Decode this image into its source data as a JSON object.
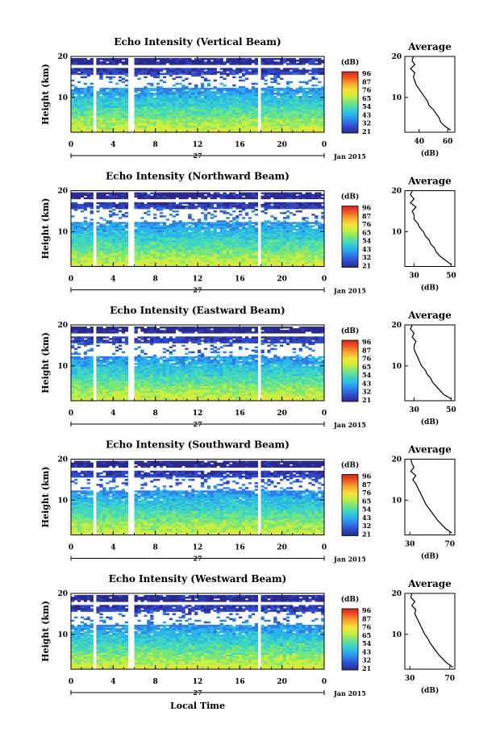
{
  "colors": {
    "colorbar": [
      "#2b2a8c",
      "#2f49c9",
      "#2f7de8",
      "#2ab4ea",
      "#3fd6c2",
      "#7ae67a",
      "#c8ee3f",
      "#f6e23a",
      "#f9a82e",
      "#ef5a23",
      "#d81e1e"
    ],
    "gap": "#ffffff",
    "axis": "#000000"
  },
  "footer": {
    "xlabel": "Local Time",
    "date_label": "Jan 2015",
    "day_label": "27"
  },
  "chart_data": [
    {
      "type": "heatmap",
      "title": "Echo Intensity (Vertical Beam)",
      "xlabel": "",
      "ylabel": "Height (km)",
      "xticks": [
        "0",
        "4",
        "8",
        "12",
        "16",
        "20",
        "0"
      ],
      "yticks": [
        "20",
        "10"
      ],
      "xlim": [
        0,
        24
      ],
      "ylim": [
        1.5,
        20
      ],
      "data_gaps_hours": [
        [
          2.1,
          2.5
        ],
        [
          5.5,
          6.0
        ],
        [
          17.7,
          18.1
        ]
      ],
      "colorbar": {
        "unit": "(dB)",
        "ticks": [
          "96",
          "87",
          "76",
          "65",
          "54",
          "43",
          "32",
          "21"
        ]
      },
      "average": {
        "title": "Average",
        "xlabel": "(dB)",
        "xticks": [
          "40",
          "60"
        ],
        "xlim": [
          30,
          65
        ],
        "height": [
          2,
          3,
          4,
          5,
          6,
          7,
          8,
          9,
          10,
          11,
          12,
          13,
          14,
          15,
          16,
          17,
          18,
          19,
          20
        ],
        "values": [
          62,
          58,
          55,
          54,
          52,
          50,
          47,
          46,
          44,
          42,
          40,
          38,
          37,
          36,
          37,
          34,
          37,
          35,
          36
        ]
      }
    },
    {
      "type": "heatmap",
      "title": "Echo Intensity (Northward Beam)",
      "xlabel": "",
      "ylabel": "Height (km)",
      "xticks": [
        "0",
        "4",
        "8",
        "12",
        "16",
        "20",
        "0"
      ],
      "yticks": [
        "20",
        "10"
      ],
      "xlim": [
        0,
        24
      ],
      "ylim": [
        1.5,
        20
      ],
      "data_gaps_hours": [
        [
          2.1,
          2.5
        ],
        [
          5.5,
          6.0
        ],
        [
          17.7,
          18.1
        ]
      ],
      "colorbar": {
        "unit": "(dB)",
        "ticks": [
          "96",
          "87",
          "76",
          "65",
          "54",
          "43",
          "32",
          "21"
        ]
      },
      "average": {
        "title": "Average",
        "xlabel": "(dB)",
        "xticks": [
          "30",
          "50"
        ],
        "xlim": [
          25,
          52
        ],
        "height": [
          2,
          3,
          4,
          5,
          6,
          7,
          8,
          9,
          10,
          11,
          12,
          13,
          14,
          15,
          16,
          17,
          18,
          19,
          20
        ],
        "values": [
          50,
          47,
          44,
          42,
          41,
          39,
          38,
          36,
          35,
          33,
          32,
          30,
          30,
          29,
          31,
          28,
          30,
          28,
          29
        ]
      }
    },
    {
      "type": "heatmap",
      "title": "Echo Intensity (Eastward Beam)",
      "xlabel": "",
      "ylabel": "Height (km)",
      "xticks": [
        "0",
        "4",
        "8",
        "12",
        "16",
        "20",
        "0"
      ],
      "yticks": [
        "20",
        "10"
      ],
      "xlim": [
        0,
        24
      ],
      "ylim": [
        1.5,
        20
      ],
      "data_gaps_hours": [
        [
          2.1,
          2.5
        ],
        [
          5.5,
          6.0
        ],
        [
          17.7,
          18.1
        ]
      ],
      "colorbar": {
        "unit": "(dB)",
        "ticks": [
          "96",
          "87",
          "76",
          "65",
          "54",
          "43",
          "32",
          "21"
        ]
      },
      "average": {
        "title": "Average",
        "xlabel": "(dB)",
        "xticks": [
          "30",
          "50"
        ],
        "xlim": [
          25,
          52
        ],
        "height": [
          2,
          3,
          4,
          5,
          6,
          7,
          8,
          9,
          10,
          11,
          12,
          13,
          14,
          15,
          16,
          17,
          18,
          19,
          20
        ],
        "values": [
          50,
          46,
          44,
          42,
          40,
          39,
          37,
          36,
          34,
          33,
          32,
          31,
          30,
          30,
          31,
          29,
          30,
          28,
          29
        ]
      }
    },
    {
      "type": "heatmap",
      "title": "Echo Intensity (Southward Beam)",
      "xlabel": "",
      "ylabel": "Height (km)",
      "xticks": [
        "0",
        "4",
        "8",
        "12",
        "16",
        "20",
        "0"
      ],
      "yticks": [
        "20",
        "10"
      ],
      "xlim": [
        0,
        24
      ],
      "ylim": [
        1.5,
        20
      ],
      "data_gaps_hours": [
        [
          2.1,
          2.5
        ],
        [
          5.5,
          6.0
        ],
        [
          17.7,
          18.1
        ]
      ],
      "colorbar": {
        "unit": "(dB)",
        "ticks": [
          "96",
          "87",
          "76",
          "65",
          "54",
          "43",
          "32",
          "21"
        ]
      },
      "average": {
        "title": "Average",
        "xlabel": "(dB)",
        "xticks": [
          "30",
          "70"
        ],
        "xlim": [
          25,
          75
        ],
        "height": [
          2,
          3,
          4,
          5,
          6,
          7,
          8,
          9,
          10,
          11,
          12,
          13,
          14,
          15,
          16,
          17,
          18,
          19,
          20
        ],
        "values": [
          72,
          66,
          62,
          58,
          55,
          52,
          49,
          46,
          44,
          42,
          40,
          38,
          36,
          33,
          36,
          31,
          34,
          32,
          31
        ]
      }
    },
    {
      "type": "heatmap",
      "title": "Echo Intensity (Westward Beam)",
      "xlabel": "",
      "ylabel": "Height (km)",
      "xticks": [
        "0",
        "4",
        "8",
        "12",
        "16",
        "20",
        "0"
      ],
      "yticks": [
        "20",
        "10"
      ],
      "xlim": [
        0,
        24
      ],
      "ylim": [
        1.5,
        20
      ],
      "data_gaps_hours": [
        [
          2.1,
          2.5
        ],
        [
          5.5,
          6.0
        ],
        [
          17.7,
          18.1
        ]
      ],
      "colorbar": {
        "unit": "(dB)",
        "ticks": [
          "96",
          "87",
          "76",
          "65",
          "54",
          "43",
          "32",
          "21"
        ]
      },
      "average": {
        "title": "Average",
        "xlabel": "(dB)",
        "xticks": [
          "30",
          "70"
        ],
        "xlim": [
          25,
          75
        ],
        "height": [
          2,
          3,
          4,
          5,
          6,
          7,
          8,
          9,
          10,
          11,
          12,
          13,
          14,
          15,
          16,
          17,
          18,
          19,
          20
        ],
        "values": [
          73,
          67,
          63,
          59,
          56,
          53,
          50,
          48,
          45,
          43,
          41,
          39,
          37,
          35,
          36,
          32,
          35,
          31,
          32
        ]
      }
    }
  ]
}
